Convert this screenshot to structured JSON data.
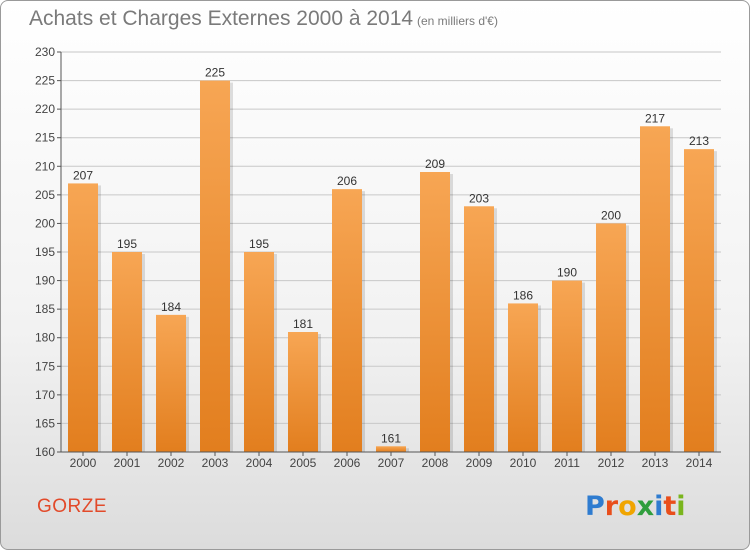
{
  "header": {
    "title": "Achats et Charges Externes 2000 à 2014",
    "subtitle": "(en milliers d'€)"
  },
  "footer": {
    "commune": "GORZE",
    "logo_text": "Proxiti"
  },
  "colors": {
    "bar_top": "#f7a654",
    "bar_bottom": "#e27e1e",
    "title": "#7a7a7a",
    "commune": "#e24a2a",
    "grid": "#c8c8c8",
    "logo": [
      "#2f7cd0",
      "#e94e1b",
      "#f0a500",
      "#2f9e3d",
      "#2f7cd0",
      "#e94e1b",
      "#7ab51d"
    ]
  },
  "chart_data": {
    "type": "bar",
    "title": "Achats et Charges Externes 2000 à 2014",
    "subtitle": "(en milliers d'€)",
    "categories": [
      "2000",
      "2001",
      "2002",
      "2003",
      "2004",
      "2005",
      "2006",
      "2007",
      "2008",
      "2009",
      "2010",
      "2011",
      "2012",
      "2013",
      "2014"
    ],
    "values": [
      207,
      195,
      184,
      225,
      195,
      181,
      206,
      161,
      209,
      203,
      186,
      190,
      200,
      217,
      213
    ],
    "ylim": [
      160,
      230
    ],
    "yticks": [
      160,
      165,
      170,
      175,
      180,
      185,
      190,
      195,
      200,
      205,
      210,
      215,
      220,
      225,
      230
    ],
    "xlabel": "",
    "ylabel": "",
    "grid": true
  }
}
